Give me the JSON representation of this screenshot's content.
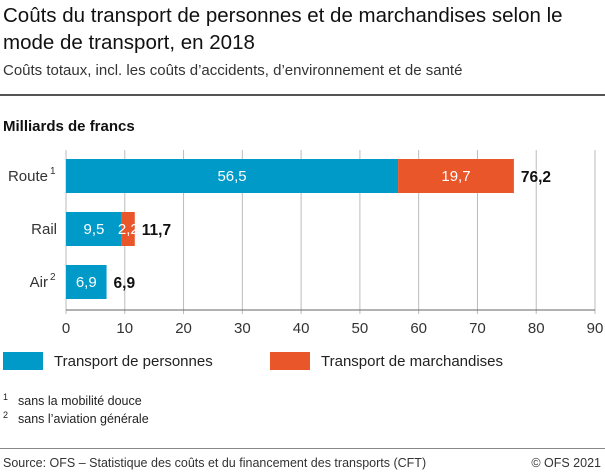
{
  "title": "Coûts du transport de personnes et de marchandises selon le mode de transport, en 2018",
  "subtitle": "Coûts totaux, incl. les coûts d’accidents, d’environnement et de santé",
  "unit_label": "Milliards de francs",
  "chart_data": {
    "type": "bar",
    "orientation": "horizontal",
    "stacked": true,
    "categories": [
      "Route",
      "Rail",
      "Air"
    ],
    "category_footnotes": [
      "1",
      "",
      "2"
    ],
    "series": [
      {
        "name": "Transport de personnes",
        "color": "#009ac8",
        "values": [
          56.5,
          9.5,
          6.9
        ],
        "labels": [
          "56,5",
          "9,5",
          "6,9"
        ]
      },
      {
        "name": "Transport de marchandises",
        "color": "#e8562a",
        "values": [
          19.7,
          2.2,
          0
        ],
        "labels": [
          "19,7",
          "2,2",
          ""
        ]
      }
    ],
    "totals": [
      76.2,
      11.7,
      6.9
    ],
    "total_labels": [
      "76,2",
      "11,7",
      "6,9"
    ],
    "xlim": [
      0,
      90
    ],
    "xticks": [
      "0",
      "10",
      "20",
      "30",
      "40",
      "50",
      "60",
      "70",
      "80",
      "90"
    ],
    "grid": true,
    "legend": "bottom"
  },
  "footnotes": [
    {
      "mark": "1",
      "text": "sans la mobilité douce"
    },
    {
      "mark": "2",
      "text": "sans l’aviation générale"
    }
  ],
  "source": "Source: OFS – Statistique des coûts et du financement des transports (CFT)",
  "copyright": "© OFS 2021"
}
